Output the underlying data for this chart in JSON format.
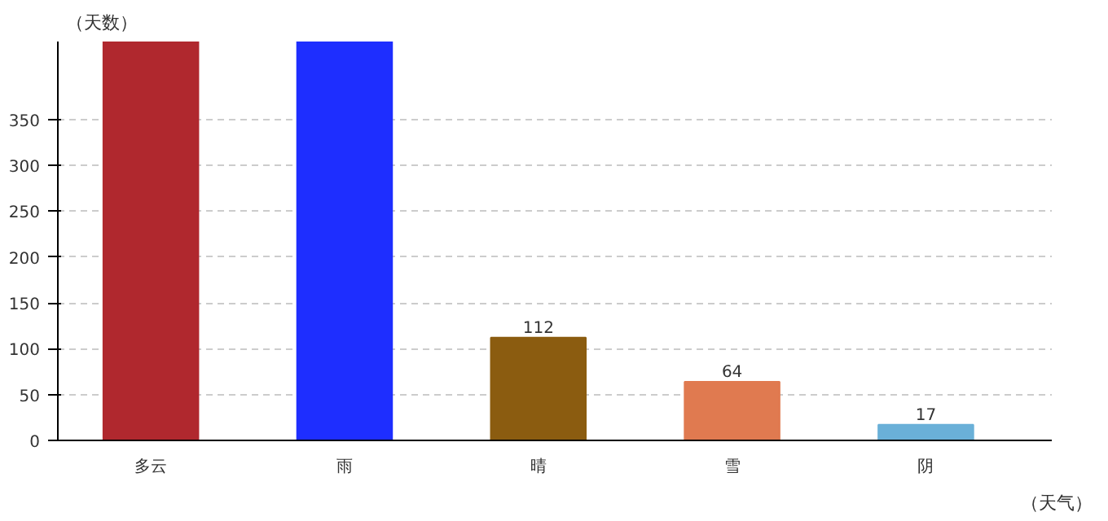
{
  "chart_data": {
    "type": "bar",
    "xlabel": "（天气）",
    "ylabel": "（天数）",
    "categories": [
      "多云",
      "雨",
      "晴",
      "雪",
      "阴"
    ],
    "values": [
      435,
      435,
      112,
      64,
      17
    ],
    "colors": [
      "#b0282e",
      "#1e2eff",
      "#8b5c10",
      "#e07a50",
      "#6ab0d8"
    ],
    "value_labels": [
      null,
      null,
      "112",
      "64",
      "17"
    ],
    "ylim": [
      0,
      435
    ],
    "yticks": [
      0,
      50,
      100,
      150,
      200,
      250,
      300,
      350
    ],
    "grid": "y"
  }
}
